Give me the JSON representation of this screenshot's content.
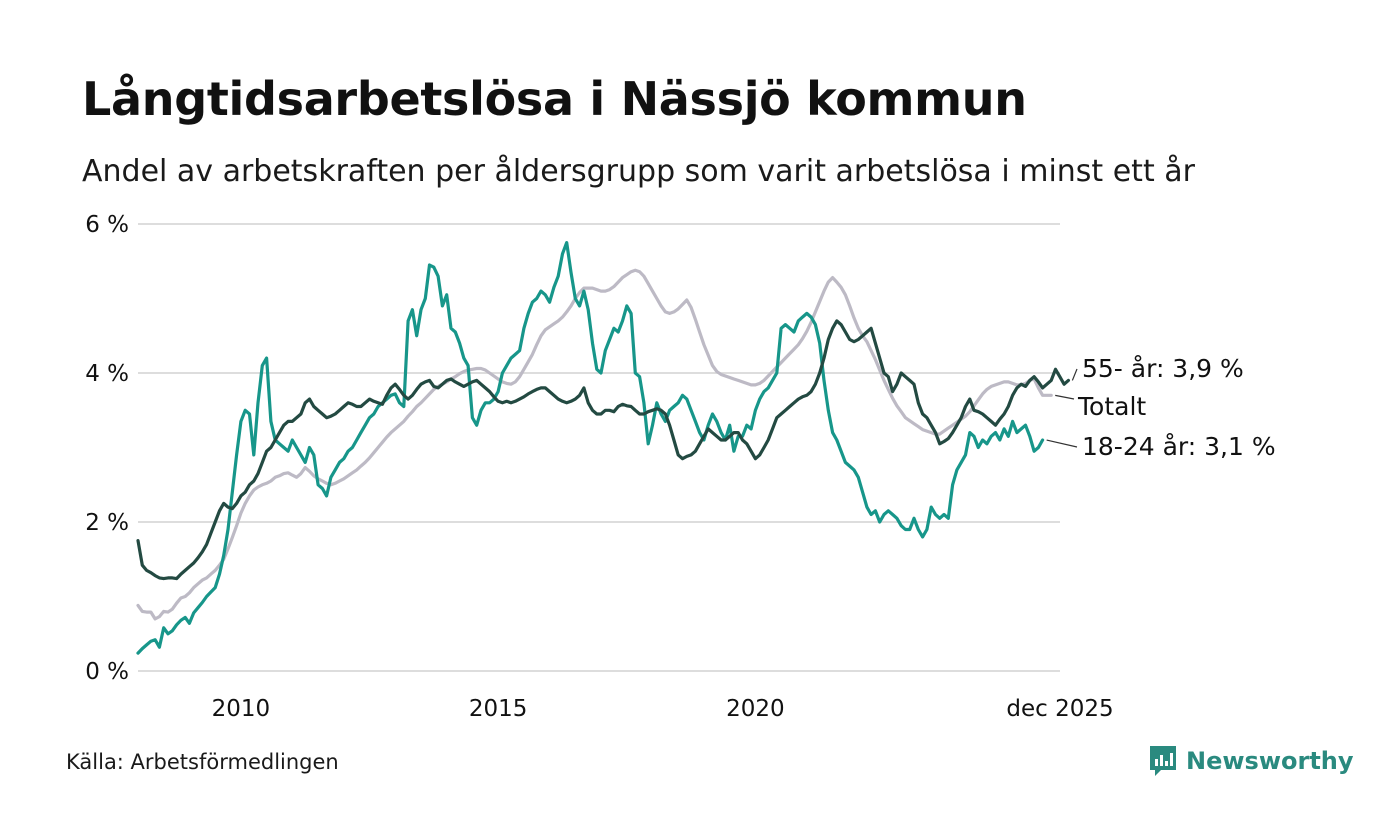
{
  "title": "Långtidsarbetslösa i Nässjö kommun",
  "subtitle": "Andel av arbetskraften per åldersgrupp som varit arbetslösa i minst ett år",
  "source": "Källa: Arbetsförmedlingen",
  "brand": "Newsworthy",
  "colors": {
    "age_55": "#234a42",
    "total": "#bdbac5",
    "age_18_24": "#17968a",
    "grid": "#dddddd",
    "brand": "#2a8a7f"
  },
  "chart_data": {
    "type": "line",
    "x_start": 2008.0,
    "x_step": 0.08333,
    "ylim": [
      0,
      6
    ],
    "xlim": [
      2008.0,
      2025.92
    ],
    "y_ticks": [
      0,
      2,
      4,
      6
    ],
    "y_tick_labels": [
      "0 %",
      "2 %",
      "4 %",
      "6 %"
    ],
    "x_ticks": [
      2010,
      2015,
      2020,
      2025.92
    ],
    "x_tick_labels": [
      "2010",
      "2015",
      "2020",
      "dec 2025"
    ],
    "end_labels": [
      "55- år: 3,9 %",
      "Totalt",
      "18-24 år: 3,1 %"
    ],
    "series": [
      {
        "name": "Totalt",
        "key": "total",
        "values": [
          0.88,
          0.8,
          0.79,
          0.79,
          0.7,
          0.73,
          0.8,
          0.79,
          0.83,
          0.91,
          0.98,
          1.0,
          1.05,
          1.12,
          1.17,
          1.22,
          1.25,
          1.3,
          1.35,
          1.42,
          1.5,
          1.64,
          1.79,
          1.95,
          2.12,
          2.25,
          2.35,
          2.43,
          2.47,
          2.5,
          2.52,
          2.55,
          2.6,
          2.62,
          2.65,
          2.66,
          2.63,
          2.6,
          2.65,
          2.73,
          2.68,
          2.62,
          2.58,
          2.55,
          2.52,
          2.5,
          2.52,
          2.55,
          2.58,
          2.62,
          2.66,
          2.7,
          2.75,
          2.8,
          2.86,
          2.93,
          3.0,
          3.07,
          3.14,
          3.2,
          3.25,
          3.3,
          3.35,
          3.42,
          3.48,
          3.55,
          3.6,
          3.66,
          3.72,
          3.78,
          3.82,
          3.85,
          3.88,
          3.92,
          3.95,
          3.99,
          4.02,
          4.04,
          4.05,
          4.06,
          4.06,
          4.04,
          4.0,
          3.96,
          3.92,
          3.88,
          3.86,
          3.85,
          3.88,
          3.95,
          4.05,
          4.15,
          4.25,
          4.38,
          4.5,
          4.58,
          4.62,
          4.66,
          4.7,
          4.75,
          4.82,
          4.9,
          5.0,
          5.08,
          5.14,
          5.14,
          5.14,
          5.12,
          5.1,
          5.1,
          5.12,
          5.16,
          5.22,
          5.28,
          5.32,
          5.36,
          5.38,
          5.36,
          5.3,
          5.2,
          5.1,
          5.0,
          4.9,
          4.82,
          4.8,
          4.82,
          4.86,
          4.92,
          4.98,
          4.88,
          4.72,
          4.55,
          4.38,
          4.24,
          4.1,
          4.02,
          3.98,
          3.96,
          3.94,
          3.92,
          3.9,
          3.88,
          3.86,
          3.84,
          3.84,
          3.86,
          3.9,
          3.96,
          4.02,
          4.08,
          4.14,
          4.2,
          4.26,
          4.32,
          4.38,
          4.46,
          4.56,
          4.68,
          4.82,
          4.96,
          5.1,
          5.22,
          5.28,
          5.22,
          5.15,
          5.05,
          4.9,
          4.74,
          4.6,
          4.5,
          4.42,
          4.3,
          4.18,
          4.04,
          3.9,
          3.78,
          3.66,
          3.56,
          3.48,
          3.4,
          3.36,
          3.32,
          3.28,
          3.24,
          3.22,
          3.2,
          3.18,
          3.18,
          3.22,
          3.26,
          3.3,
          3.34,
          3.38,
          3.42,
          3.48,
          3.56,
          3.64,
          3.72,
          3.78,
          3.82,
          3.84,
          3.86,
          3.88,
          3.88,
          3.86,
          3.84,
          3.84,
          3.86,
          3.9,
          3.92,
          3.8,
          3.7,
          3.7,
          3.7
        ]
      },
      {
        "name": "18-24 år",
        "key": "age_18_24",
        "values": [
          0.24,
          0.3,
          0.35,
          0.4,
          0.42,
          0.32,
          0.58,
          0.5,
          0.54,
          0.62,
          0.68,
          0.72,
          0.64,
          0.78,
          0.85,
          0.92,
          1.0,
          1.06,
          1.12,
          1.3,
          1.55,
          1.9,
          2.4,
          2.9,
          3.35,
          3.5,
          3.45,
          2.9,
          3.6,
          4.1,
          4.2,
          3.35,
          3.1,
          3.05,
          3.0,
          2.95,
          3.1,
          3.0,
          2.9,
          2.8,
          3.0,
          2.9,
          2.5,
          2.45,
          2.35,
          2.6,
          2.7,
          2.8,
          2.85,
          2.95,
          3.0,
          3.1,
          3.2,
          3.3,
          3.4,
          3.45,
          3.55,
          3.6,
          3.65,
          3.7,
          3.72,
          3.6,
          3.55,
          4.7,
          4.85,
          4.5,
          4.85,
          5.0,
          5.45,
          5.42,
          5.3,
          4.9,
          5.05,
          4.6,
          4.55,
          4.4,
          4.2,
          4.1,
          3.4,
          3.3,
          3.5,
          3.6,
          3.6,
          3.65,
          3.75,
          4.0,
          4.1,
          4.2,
          4.25,
          4.3,
          4.6,
          4.8,
          4.95,
          5.0,
          5.1,
          5.05,
          4.95,
          5.15,
          5.3,
          5.6,
          5.75,
          5.35,
          5.0,
          4.9,
          5.1,
          4.85,
          4.4,
          4.05,
          4.0,
          4.3,
          4.45,
          4.6,
          4.55,
          4.7,
          4.9,
          4.8,
          4.0,
          3.95,
          3.6,
          3.05,
          3.3,
          3.6,
          3.45,
          3.35,
          3.5,
          3.55,
          3.6,
          3.7,
          3.65,
          3.5,
          3.35,
          3.2,
          3.1,
          3.3,
          3.45,
          3.35,
          3.2,
          3.1,
          3.3,
          2.95,
          3.15,
          3.15,
          3.3,
          3.25,
          3.5,
          3.65,
          3.75,
          3.8,
          3.9,
          4.0,
          4.6,
          4.65,
          4.6,
          4.55,
          4.7,
          4.75,
          4.8,
          4.75,
          4.65,
          4.4,
          3.9,
          3.5,
          3.2,
          3.1,
          2.95,
          2.8,
          2.75,
          2.7,
          2.6,
          2.4,
          2.2,
          2.1,
          2.15,
          2.0,
          2.1,
          2.15,
          2.1,
          2.05,
          1.95,
          1.9,
          1.9,
          2.05,
          1.9,
          1.8,
          1.9,
          2.2,
          2.1,
          2.05,
          2.1,
          2.05,
          2.5,
          2.7,
          2.8,
          2.9,
          3.2,
          3.15,
          3.0,
          3.1,
          3.05,
          3.15,
          3.2,
          3.1,
          3.25,
          3.15,
          3.35,
          3.2,
          3.25,
          3.3,
          3.15,
          2.95,
          3.0,
          3.1
        ]
      },
      {
        "name": "55- år",
        "key": "age_55",
        "values": [
          1.75,
          1.42,
          1.35,
          1.32,
          1.28,
          1.25,
          1.24,
          1.25,
          1.25,
          1.24,
          1.3,
          1.35,
          1.4,
          1.45,
          1.52,
          1.6,
          1.7,
          1.85,
          2.0,
          2.15,
          2.25,
          2.2,
          2.18,
          2.25,
          2.35,
          2.4,
          2.5,
          2.55,
          2.65,
          2.8,
          2.95,
          3.0,
          3.1,
          3.2,
          3.3,
          3.35,
          3.35,
          3.4,
          3.45,
          3.6,
          3.65,
          3.55,
          3.5,
          3.45,
          3.4,
          3.42,
          3.45,
          3.5,
          3.55,
          3.6,
          3.58,
          3.55,
          3.55,
          3.6,
          3.65,
          3.62,
          3.6,
          3.58,
          3.7,
          3.8,
          3.85,
          3.78,
          3.7,
          3.65,
          3.7,
          3.78,
          3.85,
          3.88,
          3.9,
          3.82,
          3.8,
          3.85,
          3.9,
          3.92,
          3.88,
          3.85,
          3.82,
          3.85,
          3.88,
          3.9,
          3.85,
          3.8,
          3.75,
          3.68,
          3.62,
          3.6,
          3.62,
          3.6,
          3.62,
          3.65,
          3.68,
          3.72,
          3.75,
          3.78,
          3.8,
          3.8,
          3.75,
          3.7,
          3.65,
          3.62,
          3.6,
          3.62,
          3.65,
          3.7,
          3.8,
          3.6,
          3.5,
          3.45,
          3.45,
          3.5,
          3.5,
          3.48,
          3.55,
          3.58,
          3.56,
          3.55,
          3.5,
          3.45,
          3.45,
          3.48,
          3.5,
          3.52,
          3.5,
          3.45,
          3.3,
          3.1,
          2.9,
          2.85,
          2.88,
          2.9,
          2.95,
          3.05,
          3.15,
          3.25,
          3.2,
          3.15,
          3.1,
          3.1,
          3.15,
          3.2,
          3.2,
          3.1,
          3.05,
          2.95,
          2.85,
          2.9,
          3.0,
          3.1,
          3.25,
          3.4,
          3.45,
          3.5,
          3.55,
          3.6,
          3.65,
          3.68,
          3.7,
          3.75,
          3.85,
          4.0,
          4.2,
          4.45,
          4.6,
          4.7,
          4.65,
          4.55,
          4.45,
          4.42,
          4.45,
          4.5,
          4.55,
          4.6,
          4.4,
          4.2,
          4.0,
          3.95,
          3.75,
          3.85,
          4.0,
          3.95,
          3.9,
          3.85,
          3.6,
          3.45,
          3.4,
          3.3,
          3.2,
          3.05,
          3.08,
          3.12,
          3.2,
          3.3,
          3.4,
          3.55,
          3.65,
          3.5,
          3.48,
          3.45,
          3.4,
          3.35,
          3.3,
          3.38,
          3.45,
          3.55,
          3.7,
          3.8,
          3.85,
          3.82,
          3.9,
          3.95,
          3.88,
          3.8,
          3.85,
          3.9,
          4.05,
          3.95,
          3.85,
          3.9
        ]
      }
    ]
  }
}
